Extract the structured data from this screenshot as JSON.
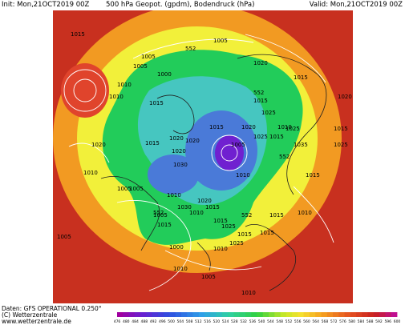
{
  "header": {
    "init": "Init: Mon,21OCT2019 00Z",
    "title": "500 hPa Geopot. (gpdm), Bodendruck (hPa)",
    "valid": "Valid: Mon,21OCT2019 00Z"
  },
  "footer": {
    "data_line": "Daten: GFS OPERATIONAL 0.250°",
    "copyright": "(C) Wetterzentrale",
    "site": "www.wetterzentrale.de"
  },
  "map": {
    "colors": {
      "cold_low": "#7020d0",
      "blue": "#4a7ad8",
      "cyan": "#46c6c0",
      "green": "#22cc5a",
      "yellow": "#f2f03a",
      "orange": "#f29a22",
      "red": "#e0442c",
      "deep_red": "#c8301f",
      "land_outline": "#202020",
      "isobar": "#ffffff"
    },
    "pressure_labels": [
      "1015",
      "1010",
      "1005",
      "1010",
      "1020",
      "1005",
      "1015",
      "552",
      "1020",
      "1015",
      "1000",
      "1005",
      "1025",
      "1010",
      "552",
      "1015",
      "1015",
      "1005",
      "1020",
      "1020",
      "1020",
      "1010",
      "1030",
      "1020",
      "1025",
      "1015",
      "1005",
      "1025",
      "1035",
      "1015",
      "1010",
      "1015",
      "552",
      "1015",
      "1005",
      "1010",
      "1020",
      "1030",
      "1025",
      "1015",
      "1015",
      "1010",
      "1015",
      "1005",
      "1015",
      "552",
      "1025",
      "1015",
      "1010",
      "1025",
      "1000",
      "1020",
      "552",
      "1010",
      "1005",
      "1010",
      "1015",
      "1005",
      "1010"
    ]
  },
  "scale": {
    "ticks": [
      "476",
      "480",
      "484",
      "488",
      "492",
      "496",
      "500",
      "504",
      "508",
      "512",
      "516",
      "520",
      "524",
      "528",
      "532",
      "536",
      "540",
      "544",
      "548",
      "552",
      "556",
      "560",
      "564",
      "568",
      "572",
      "576",
      "580",
      "584",
      "588",
      "592",
      "596",
      "600"
    ]
  }
}
